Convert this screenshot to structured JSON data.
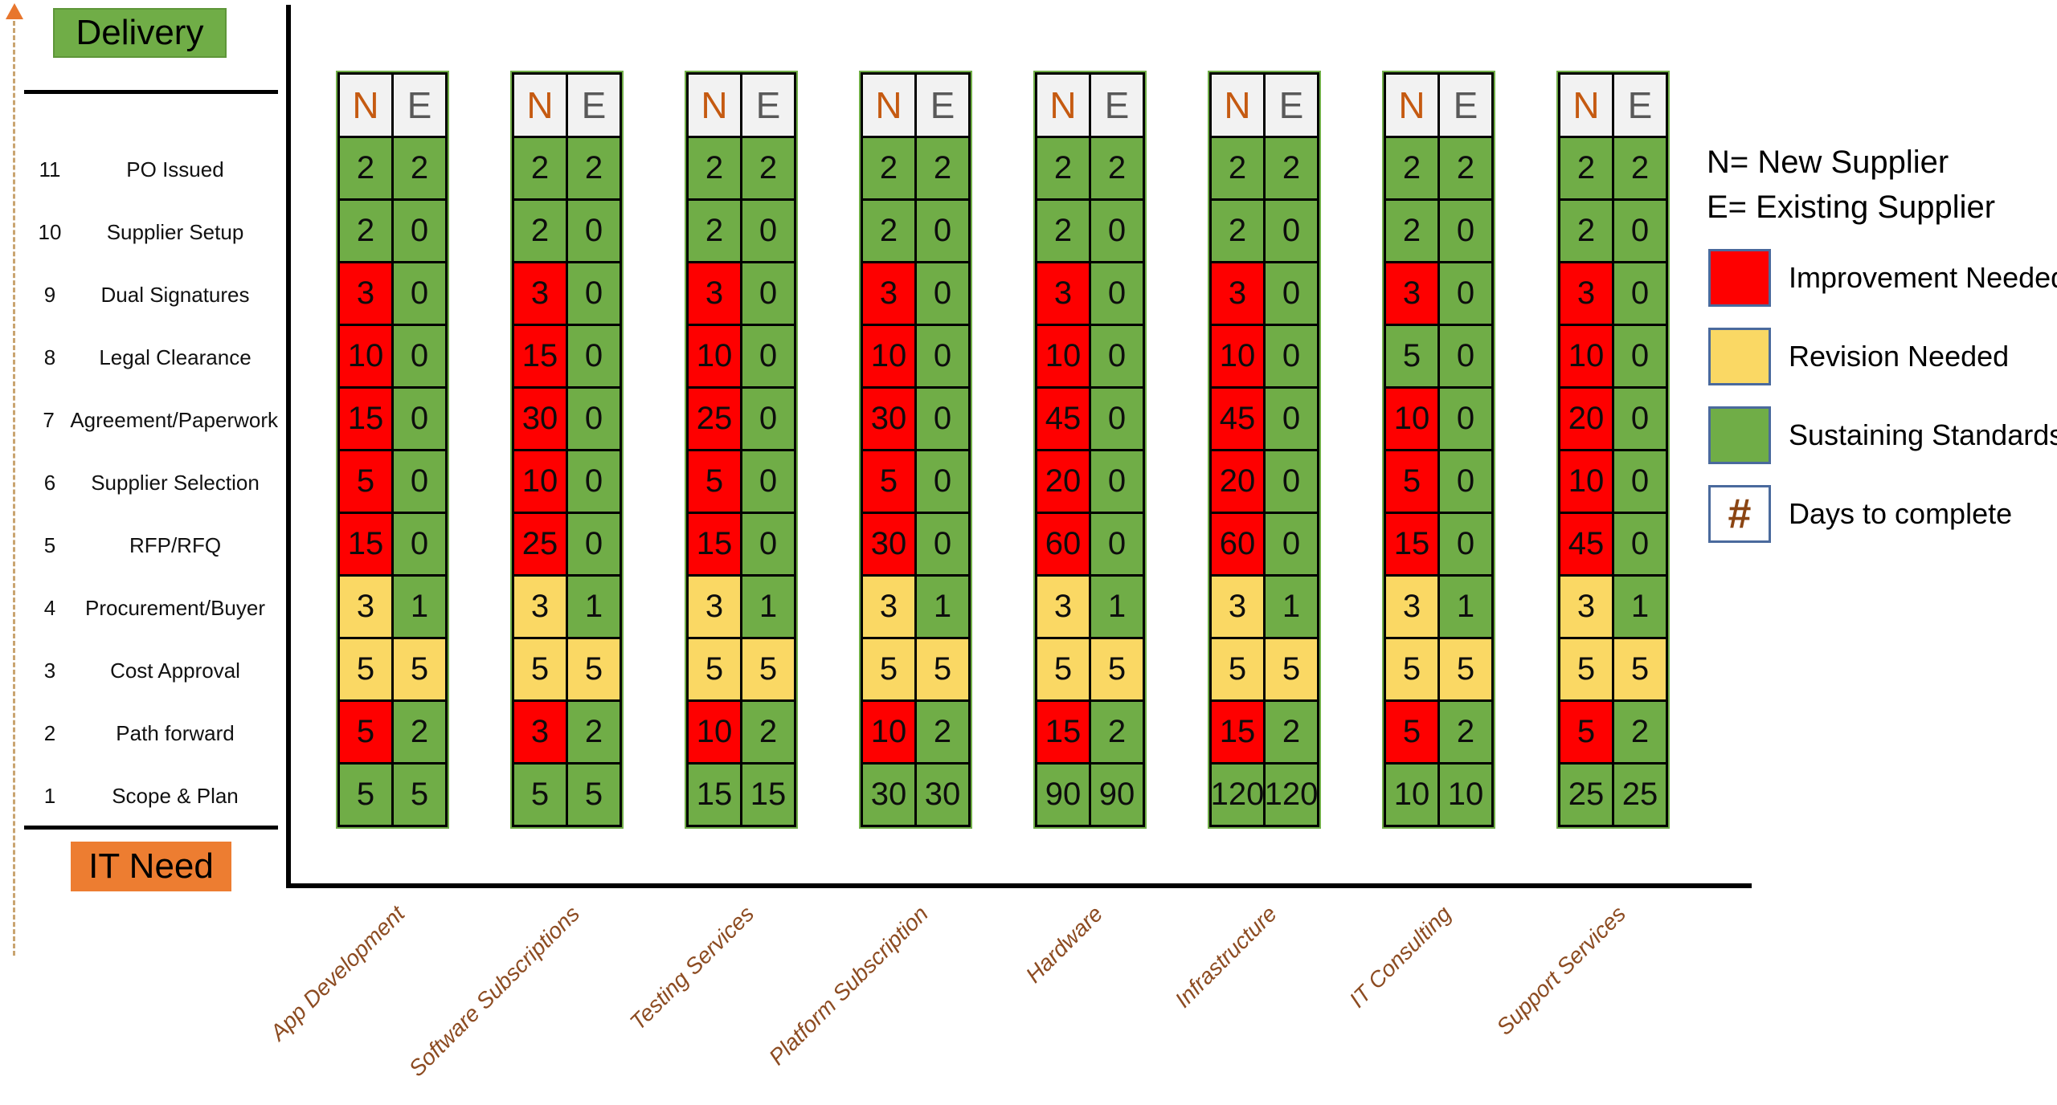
{
  "title_blocks": {
    "y_axis_label": "Delivery",
    "x_axis_label": "IT Need"
  },
  "table_header": {
    "n": "N",
    "e": "E"
  },
  "legend": {
    "n_definition": "N= New Supplier",
    "e_definition": "E= Existing Supplier",
    "items": [
      {
        "key": "red",
        "label": "Improvement Needed"
      },
      {
        "key": "yellow",
        "label": "Revision Needed"
      },
      {
        "key": "green",
        "label": "Sustaining Standards"
      },
      {
        "key": "hash",
        "label": "Days to complete",
        "symbol": "#"
      }
    ]
  },
  "colors": {
    "red": "#FE0000",
    "yellow": "#FAD864",
    "green": "#70AD47",
    "header_bg": "#F2F2F2",
    "n_letter": "#C55A11",
    "e_letter": "#595959",
    "category_text": "#8C4B21",
    "delivery_box": "#70AD47",
    "it_need_box": "#ED7D31",
    "legend_swatch_border": "#4A6A9D",
    "hash_symbol": "#8B4513",
    "dashed_axis": "#C9A470",
    "arrow": "#E8762D"
  },
  "chart_data": {
    "type": "heatmap",
    "x_axis": {
      "title": "IT Need",
      "categories": [
        "App Development",
        "Software Subscriptions",
        "Testing Services",
        "Platform Subscription",
        "Hardware",
        "Infrastructure",
        "IT Consulting",
        "Support Services"
      ]
    },
    "y_axis": {
      "title": "Delivery",
      "stages": [
        {
          "num": "11",
          "label": "PO Issued"
        },
        {
          "num": "10",
          "label": "Supplier Setup"
        },
        {
          "num": "9",
          "label": "Dual Signatures"
        },
        {
          "num": "8",
          "label": "Legal Clearance"
        },
        {
          "num": "7",
          "label": "Agreement/Paperwork"
        },
        {
          "num": "6",
          "label": "Supplier Selection"
        },
        {
          "num": "5",
          "label": "RFP/RFQ"
        },
        {
          "num": "4",
          "label": "Procurement/Buyer"
        },
        {
          "num": "3",
          "label": "Cost Approval"
        },
        {
          "num": "2",
          "label": "Path forward"
        },
        {
          "num": "1",
          "label": "Scope & Plan"
        }
      ]
    },
    "sub_columns": [
      "N = New Supplier",
      "E = Existing Supplier"
    ],
    "cell_value_meaning": "Days to complete",
    "status_meaning": {
      "red": "Improvement Needed",
      "yellow": "Revision Needed",
      "green": "Sustaining Standards"
    },
    "columns": [
      {
        "category": "App Development",
        "rows": [
          {
            "n": "2",
            "n_status": "green",
            "e": "2",
            "e_status": "green"
          },
          {
            "n": "2",
            "n_status": "green",
            "e": "0",
            "e_status": "green"
          },
          {
            "n": "3",
            "n_status": "red",
            "e": "0",
            "e_status": "green"
          },
          {
            "n": "10",
            "n_status": "red",
            "e": "0",
            "e_status": "green"
          },
          {
            "n": "15",
            "n_status": "red",
            "e": "0",
            "e_status": "green"
          },
          {
            "n": "5",
            "n_status": "red",
            "e": "0",
            "e_status": "green"
          },
          {
            "n": "15",
            "n_status": "red",
            "e": "0",
            "e_status": "green"
          },
          {
            "n": "3",
            "n_status": "yellow",
            "e": "1",
            "e_status": "green"
          },
          {
            "n": "5",
            "n_status": "yellow",
            "e": "5",
            "e_status": "yellow"
          },
          {
            "n": "5",
            "n_status": "red",
            "e": "2",
            "e_status": "green"
          },
          {
            "n": "5",
            "n_status": "green",
            "e": "5",
            "e_status": "green"
          }
        ]
      },
      {
        "category": "Software Subscriptions",
        "rows": [
          {
            "n": "2",
            "n_status": "green",
            "e": "2",
            "e_status": "green"
          },
          {
            "n": "2",
            "n_status": "green",
            "e": "0",
            "e_status": "green"
          },
          {
            "n": "3",
            "n_status": "red",
            "e": "0",
            "e_status": "green"
          },
          {
            "n": "15",
            "n_status": "red",
            "e": "0",
            "e_status": "green"
          },
          {
            "n": "30",
            "n_status": "red",
            "e": "0",
            "e_status": "green"
          },
          {
            "n": "10",
            "n_status": "red",
            "e": "0",
            "e_status": "green"
          },
          {
            "n": "25",
            "n_status": "red",
            "e": "0",
            "e_status": "green"
          },
          {
            "n": "3",
            "n_status": "yellow",
            "e": "1",
            "e_status": "green"
          },
          {
            "n": "5",
            "n_status": "yellow",
            "e": "5",
            "e_status": "yellow"
          },
          {
            "n": "3",
            "n_status": "red",
            "e": "2",
            "e_status": "green"
          },
          {
            "n": "5",
            "n_status": "green",
            "e": "5",
            "e_status": "green"
          }
        ]
      },
      {
        "category": "Testing Services",
        "rows": [
          {
            "n": "2",
            "n_status": "green",
            "e": "2",
            "e_status": "green"
          },
          {
            "n": "2",
            "n_status": "green",
            "e": "0",
            "e_status": "green"
          },
          {
            "n": "3",
            "n_status": "red",
            "e": "0",
            "e_status": "green"
          },
          {
            "n": "10",
            "n_status": "red",
            "e": "0",
            "e_status": "green"
          },
          {
            "n": "25",
            "n_status": "red",
            "e": "0",
            "e_status": "green"
          },
          {
            "n": "5",
            "n_status": "red",
            "e": "0",
            "e_status": "green"
          },
          {
            "n": "15",
            "n_status": "red",
            "e": "0",
            "e_status": "green"
          },
          {
            "n": "3",
            "n_status": "yellow",
            "e": "1",
            "e_status": "green"
          },
          {
            "n": "5",
            "n_status": "yellow",
            "e": "5",
            "e_status": "yellow"
          },
          {
            "n": "10",
            "n_status": "red",
            "e": "2",
            "e_status": "green"
          },
          {
            "n": "15",
            "n_status": "green",
            "e": "15",
            "e_status": "green"
          }
        ]
      },
      {
        "category": "Platform Subscription",
        "rows": [
          {
            "n": "2",
            "n_status": "green",
            "e": "2",
            "e_status": "green"
          },
          {
            "n": "2",
            "n_status": "green",
            "e": "0",
            "e_status": "green"
          },
          {
            "n": "3",
            "n_status": "red",
            "e": "0",
            "e_status": "green"
          },
          {
            "n": "10",
            "n_status": "red",
            "e": "0",
            "e_status": "green"
          },
          {
            "n": "30",
            "n_status": "red",
            "e": "0",
            "e_status": "green"
          },
          {
            "n": "5",
            "n_status": "red",
            "e": "0",
            "e_status": "green"
          },
          {
            "n": "30",
            "n_status": "red",
            "e": "0",
            "e_status": "green"
          },
          {
            "n": "3",
            "n_status": "yellow",
            "e": "1",
            "e_status": "green"
          },
          {
            "n": "5",
            "n_status": "yellow",
            "e": "5",
            "e_status": "yellow"
          },
          {
            "n": "10",
            "n_status": "red",
            "e": "2",
            "e_status": "green"
          },
          {
            "n": "30",
            "n_status": "green",
            "e": "30",
            "e_status": "green"
          }
        ]
      },
      {
        "category": "Hardware",
        "rows": [
          {
            "n": "2",
            "n_status": "green",
            "e": "2",
            "e_status": "green"
          },
          {
            "n": "2",
            "n_status": "green",
            "e": "0",
            "e_status": "green"
          },
          {
            "n": "3",
            "n_status": "red",
            "e": "0",
            "e_status": "green"
          },
          {
            "n": "10",
            "n_status": "red",
            "e": "0",
            "e_status": "green"
          },
          {
            "n": "45",
            "n_status": "red",
            "e": "0",
            "e_status": "green"
          },
          {
            "n": "20",
            "n_status": "red",
            "e": "0",
            "e_status": "green"
          },
          {
            "n": "60",
            "n_status": "red",
            "e": "0",
            "e_status": "green"
          },
          {
            "n": "3",
            "n_status": "yellow",
            "e": "1",
            "e_status": "green"
          },
          {
            "n": "5",
            "n_status": "yellow",
            "e": "5",
            "e_status": "yellow"
          },
          {
            "n": "15",
            "n_status": "red",
            "e": "2",
            "e_status": "green"
          },
          {
            "n": "90",
            "n_status": "green",
            "e": "90",
            "e_status": "green"
          }
        ]
      },
      {
        "category": "Infrastructure",
        "rows": [
          {
            "n": "2",
            "n_status": "green",
            "e": "2",
            "e_status": "green"
          },
          {
            "n": "2",
            "n_status": "green",
            "e": "0",
            "e_status": "green"
          },
          {
            "n": "3",
            "n_status": "red",
            "e": "0",
            "e_status": "green"
          },
          {
            "n": "10",
            "n_status": "red",
            "e": "0",
            "e_status": "green"
          },
          {
            "n": "45",
            "n_status": "red",
            "e": "0",
            "e_status": "green"
          },
          {
            "n": "20",
            "n_status": "red",
            "e": "0",
            "e_status": "green"
          },
          {
            "n": "60",
            "n_status": "red",
            "e": "0",
            "e_status": "green"
          },
          {
            "n": "3",
            "n_status": "yellow",
            "e": "1",
            "e_status": "green"
          },
          {
            "n": "5",
            "n_status": "yellow",
            "e": "5",
            "e_status": "yellow"
          },
          {
            "n": "15",
            "n_status": "red",
            "e": "2",
            "e_status": "green"
          },
          {
            "n": "120",
            "n_status": "green",
            "e": "120",
            "e_status": "green"
          }
        ]
      },
      {
        "category": "IT Consulting",
        "rows": [
          {
            "n": "2",
            "n_status": "green",
            "e": "2",
            "e_status": "green"
          },
          {
            "n": "2",
            "n_status": "green",
            "e": "0",
            "e_status": "green"
          },
          {
            "n": "3",
            "n_status": "red",
            "e": "0",
            "e_status": "green"
          },
          {
            "n": "5",
            "n_status": "green",
            "e": "0",
            "e_status": "green"
          },
          {
            "n": "10",
            "n_status": "red",
            "e": "0",
            "e_status": "green"
          },
          {
            "n": "5",
            "n_status": "red",
            "e": "0",
            "e_status": "green"
          },
          {
            "n": "15",
            "n_status": "red",
            "e": "0",
            "e_status": "green"
          },
          {
            "n": "3",
            "n_status": "yellow",
            "e": "1",
            "e_status": "green"
          },
          {
            "n": "5",
            "n_status": "yellow",
            "e": "5",
            "e_status": "yellow"
          },
          {
            "n": "5",
            "n_status": "red",
            "e": "2",
            "e_status": "green"
          },
          {
            "n": "10",
            "n_status": "green",
            "e": "10",
            "e_status": "green"
          }
        ]
      },
      {
        "category": "Support Services",
        "rows": [
          {
            "n": "2",
            "n_status": "green",
            "e": "2",
            "e_status": "green"
          },
          {
            "n": "2",
            "n_status": "green",
            "e": "0",
            "e_status": "green"
          },
          {
            "n": "3",
            "n_status": "red",
            "e": "0",
            "e_status": "green"
          },
          {
            "n": "10",
            "n_status": "red",
            "e": "0",
            "e_status": "green"
          },
          {
            "n": "20",
            "n_status": "red",
            "e": "0",
            "e_status": "green"
          },
          {
            "n": "10",
            "n_status": "red",
            "e": "0",
            "e_status": "green"
          },
          {
            "n": "45",
            "n_status": "red",
            "e": "0",
            "e_status": "green"
          },
          {
            "n": "3",
            "n_status": "yellow",
            "e": "1",
            "e_status": "green"
          },
          {
            "n": "5",
            "n_status": "yellow",
            "e": "5",
            "e_status": "yellow"
          },
          {
            "n": "5",
            "n_status": "red",
            "e": "2",
            "e_status": "green"
          },
          {
            "n": "25",
            "n_status": "green",
            "e": "25",
            "e_status": "green"
          }
        ]
      }
    ]
  }
}
